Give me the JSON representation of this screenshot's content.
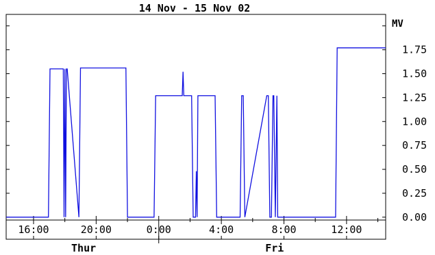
{
  "chart_data": {
    "type": "line",
    "title": "14 Nov - 15 Nov  02",
    "ylabel": "MV",
    "xlabel": "",
    "ylim": [
      -0.03,
      2.12
    ],
    "xlim": [
      14.25,
      38.5
    ],
    "x_unit": "hours since 14 Nov 00:00",
    "grid": false,
    "legend": "none",
    "line_color": "#1010e0",
    "y_ticks": [
      {
        "value": 0.0,
        "label": "0.00"
      },
      {
        "value": 0.25,
        "label": "0.25"
      },
      {
        "value": 0.5,
        "label": "0.50"
      },
      {
        "value": 0.75,
        "label": "0.75"
      },
      {
        "value": 1.0,
        "label": "1.00"
      },
      {
        "value": 1.25,
        "label": "1.25"
      },
      {
        "value": 1.5,
        "label": "1.50"
      },
      {
        "value": 1.75,
        "label": "1.75"
      }
    ],
    "x_ticks": [
      {
        "value": 16,
        "label": "16:00"
      },
      {
        "value": 20,
        "label": "20:00"
      },
      {
        "value": 24,
        "label": "0:00"
      },
      {
        "value": 28,
        "label": "4:00"
      },
      {
        "value": 32,
        "label": "8:00"
      },
      {
        "value": 36,
        "label": "12:00"
      }
    ],
    "day_labels": [
      {
        "value": 19.2,
        "label": "Thur"
      },
      {
        "value": 31.4,
        "label": "Fri"
      }
    ],
    "day_boundaries": [
      24
    ],
    "series": [
      {
        "name": "",
        "x": [
          14.25,
          16.95,
          17.05,
          17.9,
          17.95,
          18.0,
          18.05,
          18.1,
          18.15,
          18.9,
          19.0,
          21.9,
          22.0,
          23.7,
          23.8,
          25.5,
          25.55,
          25.6,
          26.1,
          26.2,
          26.35,
          26.4,
          26.45,
          26.5,
          27.6,
          27.7,
          29.2,
          29.3,
          29.4,
          29.5,
          30.9,
          31.0,
          31.1,
          31.2,
          31.3,
          31.35,
          31.45,
          31.55,
          31.6,
          35.3,
          35.4,
          38.5
        ],
        "y": [
          0.0,
          0.0,
          1.55,
          1.55,
          0.0,
          1.55,
          0.0,
          1.55,
          1.55,
          0.0,
          1.56,
          1.56,
          0.0,
          0.0,
          1.27,
          1.27,
          1.52,
          1.27,
          1.27,
          0.0,
          0.0,
          0.48,
          0.0,
          1.27,
          1.27,
          0.0,
          0.0,
          1.27,
          1.27,
          0.0,
          1.27,
          1.27,
          0.0,
          0.0,
          1.27,
          1.27,
          0.0,
          1.27,
          0.0,
          0.0,
          1.77,
          1.77
        ]
      }
    ]
  }
}
